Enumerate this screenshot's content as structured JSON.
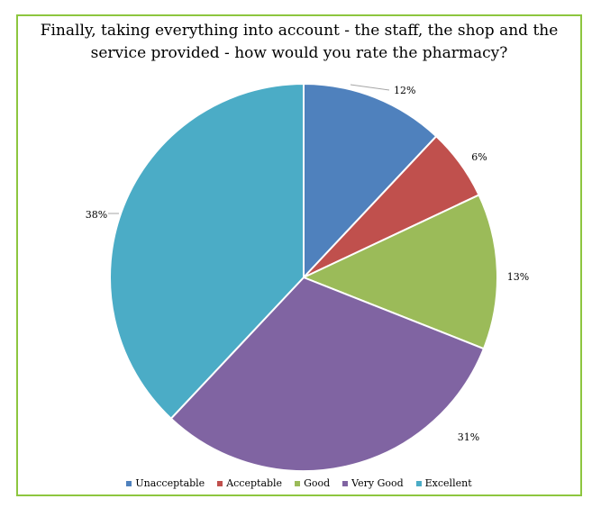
{
  "chart_data": {
    "type": "pie",
    "title": "Finally, taking everything into account - the staff, the shop and the service provided - how would you rate the pharmacy?",
    "title_lines": [
      "Finally, taking everything into account - the staff, the shop and the",
      "service provided - how would you rate the pharmacy?"
    ],
    "categories": [
      "Unacceptable",
      "Acceptable",
      "Good",
      "Very Good",
      "Excellent"
    ],
    "values": [
      12,
      6,
      13,
      31,
      38
    ],
    "labels": [
      "12%",
      "6%",
      "13%",
      "31%",
      "38%"
    ],
    "colors": [
      "#4F81BD",
      "#C0504D",
      "#9BBB59",
      "#8064A2",
      "#4BACC6"
    ],
    "legend_position": "bottom"
  }
}
